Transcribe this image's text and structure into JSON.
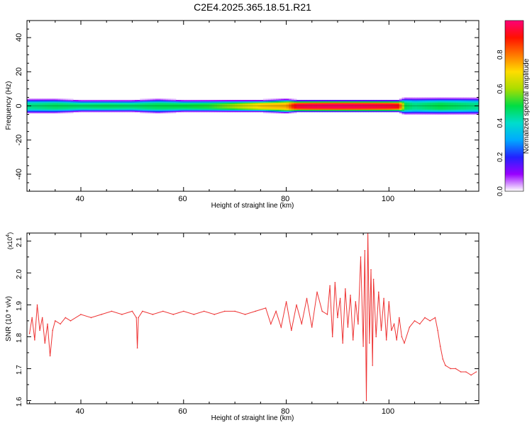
{
  "figure": {
    "title": "C2E4.2025.365.18.51.R21"
  },
  "chart_data": [
    {
      "type": "heatmap",
      "title": "C2E4.2025.365.18.51.R21",
      "xlabel": "Height of straight line (km)",
      "ylabel": "Frequency (Hz)",
      "xlim": [
        29.5,
        117.5
      ],
      "ylim": [
        -50,
        50
      ],
      "x_ticks": [
        "40",
        "60",
        "80",
        "100"
      ],
      "y_ticks": [
        "40",
        "20",
        "0",
        "-20",
        "-40"
      ],
      "colorbar": {
        "label": "Normalized spectral amplitude",
        "range": [
          0,
          1
        ],
        "ticks": [
          "0.0",
          "0.2",
          "0.4",
          "0.6",
          "0.8"
        ]
      },
      "band_center_hz": 0,
      "profile": {
        "x": [
          30,
          35,
          40,
          45,
          50,
          55,
          60,
          65,
          70,
          75,
          80,
          82,
          85,
          90,
          95,
          100,
          102,
          103,
          105,
          110,
          117
        ],
        "peak_amplitude": [
          0.45,
          0.48,
          0.47,
          0.48,
          0.47,
          0.49,
          0.5,
          0.52,
          0.6,
          0.72,
          0.75,
          0.95,
          0.97,
          0.98,
          0.97,
          0.95,
          0.92,
          0.5,
          0.45,
          0.5,
          0.45
        ],
        "half_width_hz": [
          3,
          3,
          2.5,
          2.5,
          2.5,
          3,
          2.5,
          2.5,
          2.5,
          2.5,
          3,
          2.5,
          2.5,
          2.5,
          2.5,
          2.5,
          2.5,
          3.5,
          3.5,
          3.5,
          3.5
        ]
      }
    },
    {
      "type": "line",
      "xlabel": "Height of straight line (km)",
      "ylabel": "SNR (10 * v/v)",
      "y_multiplier": "(x10",
      "y_multiplier_exp": "4",
      "xlim": [
        29.5,
        117.5
      ],
      "ylim": [
        1.59,
        2.125
      ],
      "x_ticks": [
        "40",
        "60",
        "80",
        "100"
      ],
      "y_ticks": [
        "1.6",
        "1.7",
        "1.8",
        "1.9",
        "2.0",
        "2.1"
      ],
      "color": "#ee3333",
      "series": [
        {
          "x": [
            30,
            30.5,
            31,
            31.5,
            32,
            32.5,
            33,
            33.5,
            34,
            34.5,
            35,
            36,
            37,
            38,
            40,
            42,
            44,
            46,
            48,
            50,
            50.8,
            51,
            51.2,
            52,
            54,
            56,
            58,
            60,
            62,
            64,
            66,
            68,
            70,
            72,
            74,
            76,
            77,
            78,
            79,
            80,
            81,
            82,
            83,
            84,
            85,
            86,
            87,
            88,
            88.5,
            89,
            89.5,
            90,
            90.5,
            91,
            91.5,
            92,
            92.5,
            93,
            93.5,
            94,
            94.5,
            95,
            95.3,
            95.6,
            95.9,
            96.2,
            96.5,
            96.8,
            97,
            97.5,
            98,
            98.5,
            99,
            99.5,
            100,
            100.5,
            101,
            101.5,
            102,
            102.5,
            103,
            104,
            105,
            106,
            107,
            108,
            109,
            109.5,
            110,
            110.5,
            111,
            112,
            113,
            114,
            115,
            116,
            117
          ],
          "y": [
            1.81,
            1.86,
            1.79,
            1.9,
            1.82,
            1.86,
            1.78,
            1.84,
            1.74,
            1.82,
            1.85,
            1.84,
            1.86,
            1.85,
            1.87,
            1.86,
            1.87,
            1.88,
            1.87,
            1.88,
            1.86,
            1.765,
            1.86,
            1.88,
            1.87,
            1.88,
            1.87,
            1.88,
            1.87,
            1.88,
            1.87,
            1.88,
            1.88,
            1.87,
            1.88,
            1.89,
            1.84,
            1.88,
            1.83,
            1.91,
            1.82,
            1.9,
            1.84,
            1.92,
            1.83,
            1.94,
            1.88,
            1.87,
            1.96,
            1.8,
            1.97,
            1.86,
            1.92,
            1.78,
            1.95,
            1.83,
            1.93,
            1.79,
            1.91,
            1.84,
            2.05,
            1.77,
            2.07,
            1.6,
            2.13,
            1.78,
            2.01,
            1.71,
            1.98,
            1.8,
            1.94,
            1.82,
            1.92,
            1.79,
            1.91,
            1.82,
            1.84,
            1.79,
            1.86,
            1.8,
            1.78,
            1.83,
            1.85,
            1.84,
            1.86,
            1.85,
            1.86,
            1.82,
            1.77,
            1.73,
            1.71,
            1.7,
            1.7,
            1.69,
            1.69,
            1.68,
            1.69
          ]
        }
      ]
    }
  ]
}
